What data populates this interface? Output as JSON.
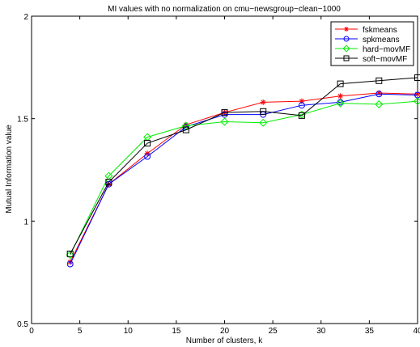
{
  "chart_data": {
    "type": "line",
    "title": "MI values with no normalization on cmu−newsgroup−clean−1000",
    "xlabel": "Number of clusters, k",
    "ylabel": "Mutual Information value",
    "xlim": [
      0,
      40
    ],
    "ylim": [
      0.5,
      2
    ],
    "xticks": [
      0,
      5,
      10,
      15,
      20,
      25,
      30,
      35,
      40
    ],
    "yticks": [
      0.5,
      1,
      1.5,
      2
    ],
    "xtick_labels": [
      "0",
      "5",
      "10",
      "15",
      "20",
      "25",
      "30",
      "35",
      "40"
    ],
    "ytick_labels": [
      "0.5",
      "1",
      "1.5",
      "2"
    ],
    "grid": false,
    "legend_position": "top-right",
    "x": [
      4,
      8,
      12,
      16,
      20,
      24,
      28,
      32,
      36,
      40
    ],
    "series": [
      {
        "name": "fskmeans",
        "color": "#ff0000",
        "marker": "asterisk",
        "values": [
          0.8,
          1.18,
          1.33,
          1.47,
          1.53,
          1.58,
          1.585,
          1.61,
          1.625,
          1.62
        ]
      },
      {
        "name": "spkmeans",
        "color": "#0000ff",
        "marker": "circle",
        "values": [
          0.79,
          1.18,
          1.315,
          1.46,
          1.52,
          1.52,
          1.565,
          1.58,
          1.62,
          1.615
        ]
      },
      {
        "name": "hard−movMF",
        "color": "#00ee00",
        "marker": "diamond",
        "values": [
          0.835,
          1.22,
          1.41,
          1.465,
          1.485,
          1.48,
          1.52,
          1.575,
          1.57,
          1.585
        ]
      },
      {
        "name": "soft−movMF",
        "color": "#000000",
        "marker": "square",
        "values": [
          0.84,
          1.19,
          1.38,
          1.445,
          1.53,
          1.535,
          1.515,
          1.67,
          1.685,
          1.7
        ]
      }
    ]
  }
}
